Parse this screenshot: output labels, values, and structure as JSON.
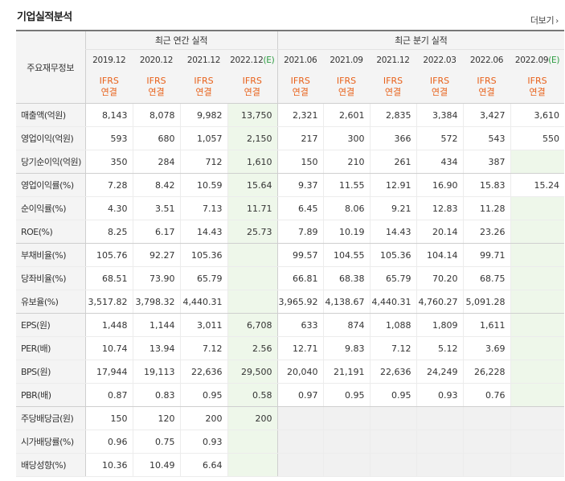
{
  "title": "기업실적분석",
  "more_label": "더보기",
  "header": {
    "row_label": "주요재무정보",
    "annual_group": "최근 연간 실적",
    "quarter_group": "최근 분기 실적",
    "annual_periods": [
      "2019.12",
      "2020.12",
      "2021.12",
      "2022.12"
    ],
    "annual_estimate_mark": "(E)",
    "quarter_periods": [
      "2021.06",
      "2021.09",
      "2021.12",
      "2022.03",
      "2022.06",
      "2022.09"
    ],
    "quarter_estimate_mark": "(E)",
    "type_line1": "IFRS",
    "type_line2": "연결"
  },
  "rows": [
    {
      "label": "매출액(억원)",
      "annual": [
        "8,143",
        "8,078",
        "9,982",
        "13,750"
      ],
      "quarter": [
        "2,321",
        "2,601",
        "2,835",
        "3,384",
        "3,427",
        "3,610"
      ]
    },
    {
      "label": "영업이익(억원)",
      "annual": [
        "593",
        "680",
        "1,057",
        "2,150"
      ],
      "quarter": [
        "217",
        "300",
        "366",
        "572",
        "543",
        "550"
      ]
    },
    {
      "label": "당기순이익(억원)",
      "annual": [
        "350",
        "284",
        "712",
        "1,610"
      ],
      "quarter": [
        "150",
        "210",
        "261",
        "434",
        "387",
        ""
      ]
    },
    {
      "label": "영업이익률(%)",
      "annual": [
        "7.28",
        "8.42",
        "10.59",
        "15.64"
      ],
      "quarter": [
        "9.37",
        "11.55",
        "12.91",
        "16.90",
        "15.83",
        "15.24"
      ]
    },
    {
      "label": "순이익률(%)",
      "annual": [
        "4.30",
        "3.51",
        "7.13",
        "11.71"
      ],
      "quarter": [
        "6.45",
        "8.06",
        "9.21",
        "12.83",
        "11.28",
        ""
      ]
    },
    {
      "label": "ROE(%)",
      "annual": [
        "8.25",
        "6.17",
        "14.43",
        "25.73"
      ],
      "quarter": [
        "7.89",
        "10.19",
        "14.43",
        "20.14",
        "23.26",
        ""
      ]
    },
    {
      "label": "부채비율(%)",
      "annual": [
        "105.76",
        "92.27",
        "105.36",
        ""
      ],
      "quarter": [
        "99.57",
        "104.55",
        "105.36",
        "104.14",
        "99.71",
        ""
      ]
    },
    {
      "label": "당좌비율(%)",
      "annual": [
        "68.51",
        "73.90",
        "65.79",
        ""
      ],
      "quarter": [
        "66.81",
        "68.38",
        "65.79",
        "70.20",
        "68.75",
        ""
      ]
    },
    {
      "label": "유보율(%)",
      "annual": [
        "3,517.82",
        "3,798.32",
        "4,440.31",
        ""
      ],
      "quarter": [
        "3,965.92",
        "4,138.67",
        "4,440.31",
        "4,760.27",
        "5,091.28",
        ""
      ]
    },
    {
      "label": "EPS(원)",
      "annual": [
        "1,448",
        "1,144",
        "3,011",
        "6,708"
      ],
      "quarter": [
        "633",
        "874",
        "1,088",
        "1,809",
        "1,611",
        ""
      ]
    },
    {
      "label": "PER(배)",
      "annual": [
        "10.74",
        "13.94",
        "7.12",
        "2.56"
      ],
      "quarter": [
        "12.71",
        "9.83",
        "7.12",
        "5.12",
        "3.69",
        ""
      ]
    },
    {
      "label": "BPS(원)",
      "annual": [
        "17,944",
        "19,113",
        "22,636",
        "29,500"
      ],
      "quarter": [
        "20,040",
        "21,191",
        "22,636",
        "24,249",
        "26,228",
        ""
      ]
    },
    {
      "label": "PBR(배)",
      "annual": [
        "0.87",
        "0.83",
        "0.95",
        "0.58"
      ],
      "quarter": [
        "0.97",
        "0.95",
        "0.95",
        "0.93",
        "0.76",
        ""
      ]
    },
    {
      "label": "주당배당금(원)",
      "annual": [
        "150",
        "120",
        "200",
        "200"
      ],
      "quarter": [
        "",
        "",
        "",
        "",
        "",
        ""
      ]
    },
    {
      "label": "시가배당률(%)",
      "annual": [
        "0.96",
        "0.75",
        "0.93",
        ""
      ],
      "quarter": [
        "",
        "",
        "",
        "",
        "",
        ""
      ]
    },
    {
      "label": "배당성향(%)",
      "annual": [
        "10.36",
        "10.49",
        "6.64",
        ""
      ],
      "quarter": [
        "",
        "",
        "",
        "",
        "",
        ""
      ]
    }
  ]
}
